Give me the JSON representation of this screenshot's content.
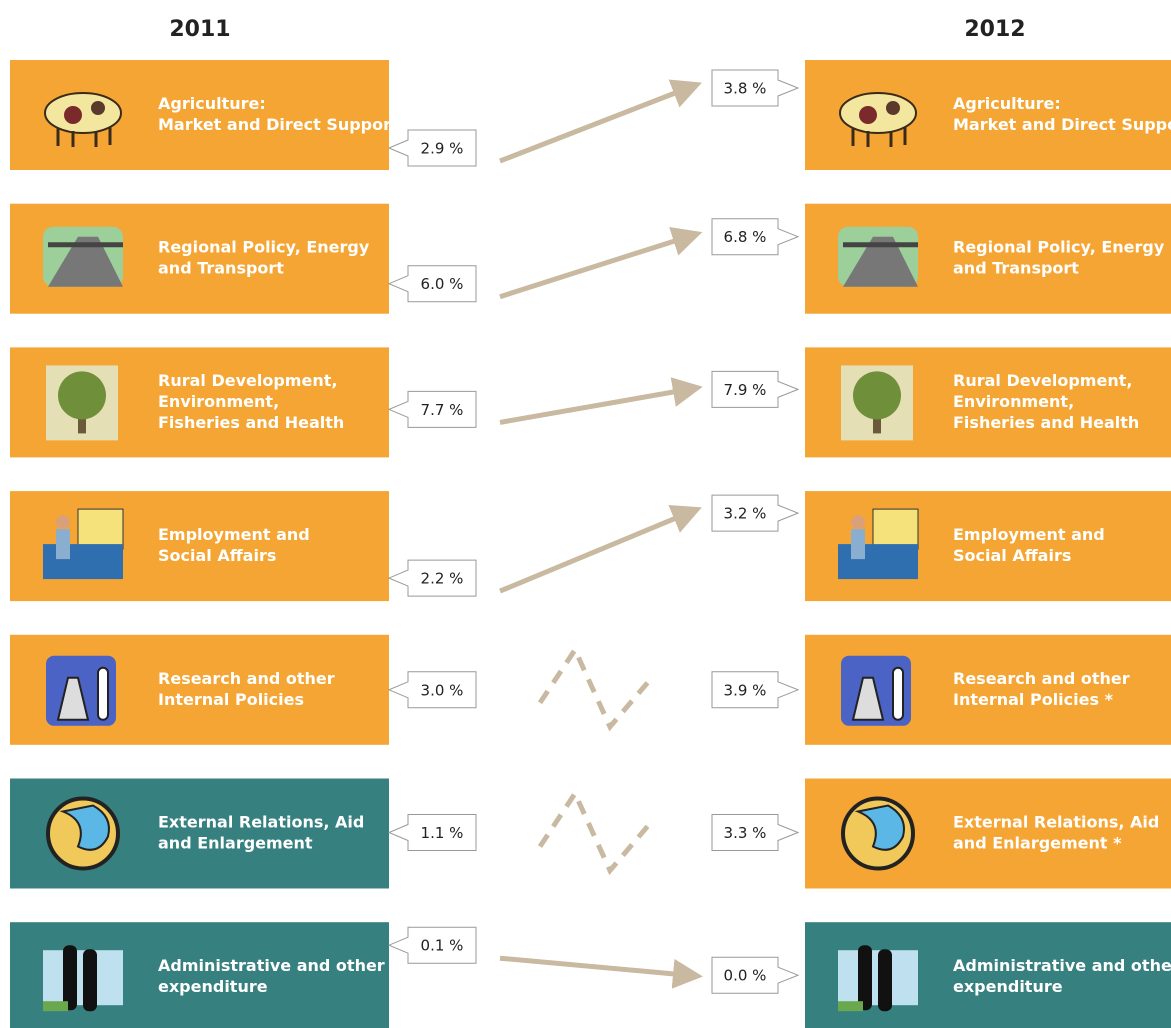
{
  "headers": {
    "left": "2011",
    "right": "2012"
  },
  "rows": [
    {
      "left": {
        "label": [
          "Agriculture:",
          "Market and Direct Support"
        ],
        "value": "2.9 %",
        "color": "#f5a533"
      },
      "right": {
        "label": [
          "Agriculture:",
          "Market and Direct Support"
        ],
        "value": "3.8 %",
        "color": "#f5a533"
      }
    },
    {
      "left": {
        "label": [
          "Regional Policy, Energy",
          "and Transport"
        ],
        "value": "6.0 %",
        "color": "#f5a533"
      },
      "right": {
        "label": [
          "Regional Policy, Energy",
          "and Transport"
        ],
        "value": "6.8 %",
        "color": "#f5a533"
      }
    },
    {
      "left": {
        "label": [
          "Rural Development,",
          "Environment,",
          "Fisheries and Health"
        ],
        "value": "7.7 %",
        "color": "#f5a533"
      },
      "right": {
        "label": [
          "Rural Development,",
          "Environment,",
          "Fisheries and Health"
        ],
        "value": "7.9 %",
        "color": "#f5a533"
      }
    },
    {
      "left": {
        "label": [
          "Employment and",
          "Social Affairs"
        ],
        "value": "2.2 %",
        "color": "#f5a533"
      },
      "right": {
        "label": [
          "Employment and",
          "Social Affairs"
        ],
        "value": "3.2 %",
        "color": "#f5a533"
      }
    },
    {
      "left": {
        "label": [
          "Research and other",
          "Internal Policies"
        ],
        "value": "3.0 %",
        "color": "#f5a533"
      },
      "right": {
        "label": [
          "Research and other",
          "Internal Policies *"
        ],
        "value": "3.9 %",
        "color": "#f5a533"
      }
    },
    {
      "left": {
        "label": [
          "External Relations, Aid",
          "and Enlargement"
        ],
        "value": "1.1 %",
        "color": "#36807f"
      },
      "right": {
        "label": [
          "External Relations, Aid",
          "and Enlargement *"
        ],
        "value": "3.3 %",
        "color": "#f5a533"
      }
    },
    {
      "left": {
        "label": [
          "Administrative and other",
          "expenditure"
        ],
        "value": "0.1 %",
        "color": "#36807f"
      },
      "right": {
        "label": [
          "Administrative and other",
          "expenditure"
        ],
        "value": "0.0 %",
        "color": "#36807f"
      }
    }
  ]
}
